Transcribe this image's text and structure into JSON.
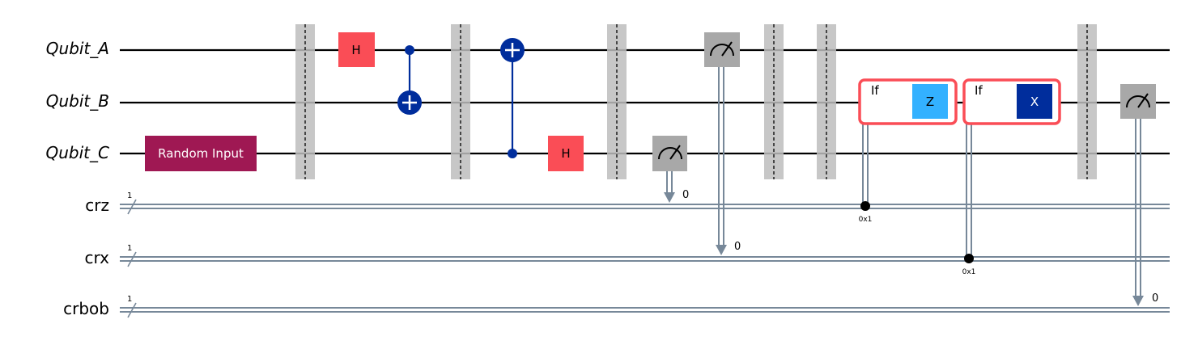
{
  "qubits": [
    "Qubit_A",
    "Qubit_B",
    "Qubit_C"
  ],
  "clbits": [
    {
      "name": "crz",
      "size": "1"
    },
    {
      "name": "crx",
      "size": "1"
    },
    {
      "name": "crbob",
      "size": "1"
    }
  ],
  "gates": {
    "random_input": "Random Input",
    "h": "H",
    "z": "Z",
    "x": "X",
    "if": "If"
  },
  "measure_bits": {
    "m_c_to_crz": "0",
    "m_a_to_crx": "0",
    "m_b_to_crbob": "0"
  },
  "conditions": {
    "cond_crz": "0x1",
    "cond_crx": "0x1"
  },
  "colors": {
    "wire": "#000000",
    "cwire": "#778899",
    "barrier": "#bdbdbd",
    "h_gate": "#fa4d56",
    "random_input": "#9f1853",
    "cnot": "#002d9c",
    "measure": "#a8a8a8",
    "z_gate": "#33b1ff",
    "x_gate": "#002d9c",
    "if_box": "#fa4d56"
  }
}
